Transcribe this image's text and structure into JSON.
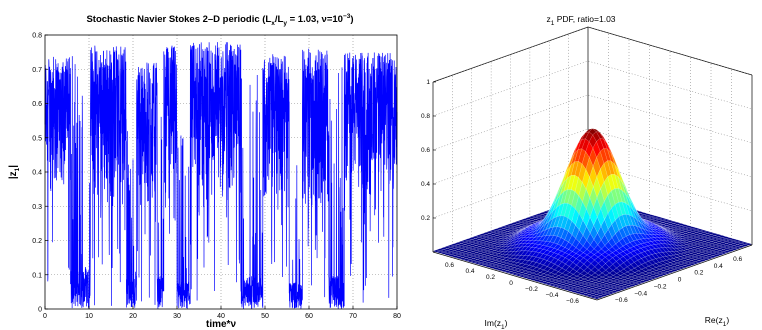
{
  "chart_data": [
    {
      "type": "line",
      "title": {
        "prefix": "Stochastic Navier Stokes 2–D periodic (L",
        "sub_x": "x",
        "mid": "/L",
        "sub_y": "y",
        "suffix": " = 1.03, ν=10",
        "sup": "−3",
        "end": ")"
      },
      "xlabel": "time*ν",
      "ylabel": {
        "main": "|z",
        "sub": "1",
        "end": "|"
      },
      "xlim": [
        0,
        80
      ],
      "ylim": [
        0,
        0.8
      ],
      "xticks": [
        "0",
        "10",
        "20",
        "30",
        "40",
        "50",
        "60",
        "70",
        "80"
      ],
      "yticks": [
        "0",
        "0.1",
        "0.2",
        "0.3",
        "0.4",
        "0.5",
        "0.6",
        "0.7",
        "0.8"
      ],
      "grid": true,
      "line_color": "#0000ff",
      "series": [
        {
          "segments": [
            {
              "x0": 0,
              "x1": 5.8,
              "center": 0.58,
              "lo": 0.32,
              "hi": 0.74
            },
            {
              "x0": 5.8,
              "x1": 10.3,
              "center": 0.08,
              "lo": 0.0,
              "hi": 0.74
            },
            {
              "x0": 10.3,
              "x1": 18.5,
              "center": 0.55,
              "lo": 0.25,
              "hi": 0.77
            },
            {
              "x0": 18.5,
              "x1": 20.8,
              "center": 0.06,
              "lo": 0.0,
              "hi": 0.55
            },
            {
              "x0": 20.8,
              "x1": 25.5,
              "center": 0.5,
              "lo": 0.25,
              "hi": 0.72
            },
            {
              "x0": 25.5,
              "x1": 27.0,
              "center": 0.06,
              "lo": 0.0,
              "hi": 0.6
            },
            {
              "x0": 27.0,
              "x1": 30.0,
              "center": 0.56,
              "lo": 0.3,
              "hi": 0.77
            },
            {
              "x0": 30.0,
              "x1": 33.0,
              "center": 0.05,
              "lo": 0.0,
              "hi": 0.58
            },
            {
              "x0": 33.0,
              "x1": 44.5,
              "center": 0.52,
              "lo": 0.25,
              "hi": 0.78
            },
            {
              "x0": 44.5,
              "x1": 49.5,
              "center": 0.06,
              "lo": 0.0,
              "hi": 0.72
            },
            {
              "x0": 49.5,
              "x1": 55.5,
              "center": 0.52,
              "lo": 0.27,
              "hi": 0.75
            },
            {
              "x0": 55.5,
              "x1": 58.5,
              "center": 0.05,
              "lo": 0.0,
              "hi": 0.45
            },
            {
              "x0": 58.5,
              "x1": 64.5,
              "center": 0.52,
              "lo": 0.25,
              "hi": 0.76
            },
            {
              "x0": 64.5,
              "x1": 68.0,
              "center": 0.06,
              "lo": 0.0,
              "hi": 0.72
            },
            {
              "x0": 68.0,
              "x1": 80.0,
              "center": 0.55,
              "lo": 0.3,
              "hi": 0.75
            }
          ]
        }
      ]
    },
    {
      "type": "surface",
      "title": {
        "prefix": "z",
        "sub": "1",
        "suffix": " PDF, ratio=1.03"
      },
      "xlabel": {
        "main": "Im(z",
        "sub": "1",
        "end": ")"
      },
      "ylabel": {
        "main": "Re(z",
        "sub": "1",
        "end": ")"
      },
      "zlim": [
        0,
        1
      ],
      "zticks": [
        "0.2",
        "0.4",
        "0.6",
        "0.8",
        "1"
      ],
      "im_ticks": [
        "0.6",
        "0.4",
        "0.2",
        "0",
        "−0.2",
        "−0.4",
        "−0.6"
      ],
      "re_ticks": [
        "−0.6",
        "−0.4",
        "−0.2",
        "0",
        "0.2",
        "0.4",
        "0.6"
      ],
      "range": [
        -0.8,
        0.8
      ],
      "peak": 0.7,
      "peak_width": 0.2,
      "ring_radius": 0.5,
      "ring_height": 0.08,
      "colormap": "jet",
      "grid": true
    }
  ]
}
